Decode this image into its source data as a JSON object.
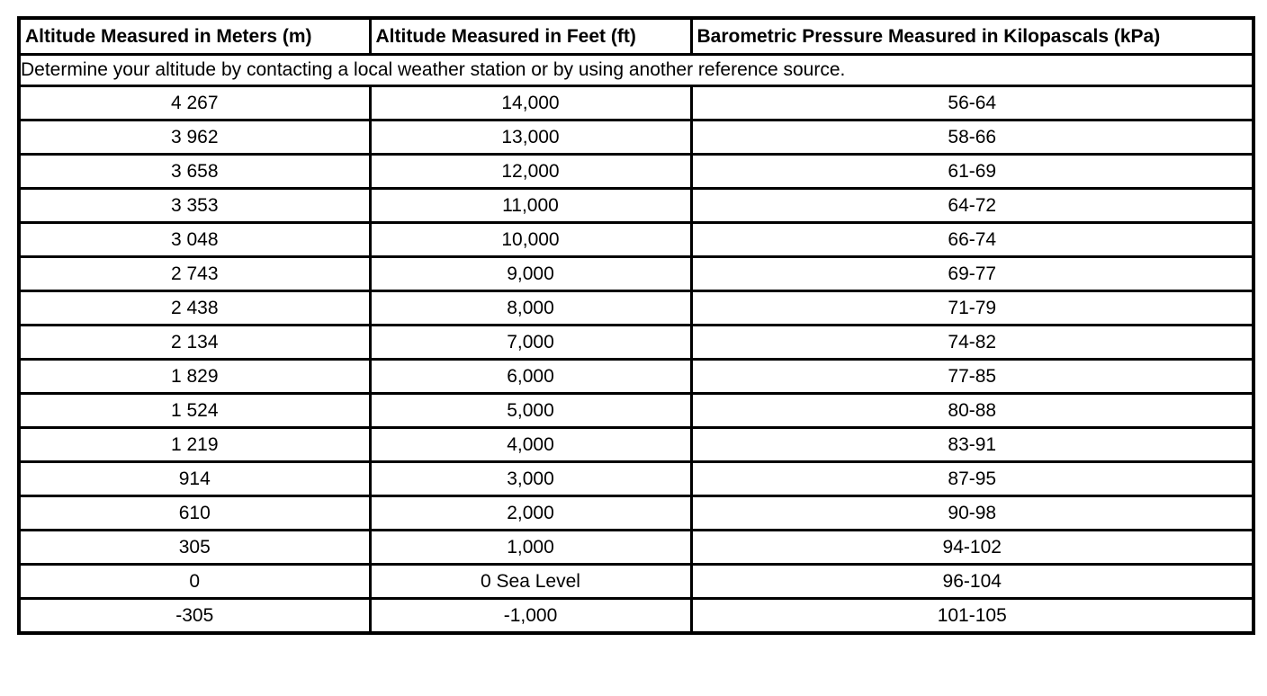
{
  "table": {
    "headers": {
      "meters": "Altitude Measured in Meters (m)",
      "feet": "Altitude Measured in Feet (ft)",
      "pressure": "Barometric Pressure Measured in Kilopascals (kPa)"
    },
    "note": "Determine your altitude by contacting a local weather station or by using another reference source.",
    "rows": [
      {
        "meters": "4 267",
        "feet": "14,000",
        "pressure": "56-64"
      },
      {
        "meters": "3 962",
        "feet": "13,000",
        "pressure": "58-66"
      },
      {
        "meters": "3 658",
        "feet": "12,000",
        "pressure": "61-69"
      },
      {
        "meters": "3 353",
        "feet": "11,000",
        "pressure": "64-72"
      },
      {
        "meters": "3 048",
        "feet": "10,000",
        "pressure": "66-74"
      },
      {
        "meters": "2 743",
        "feet": "9,000",
        "pressure": "69-77"
      },
      {
        "meters": "2 438",
        "feet": "8,000",
        "pressure": "71-79"
      },
      {
        "meters": "2 134",
        "feet": "7,000",
        "pressure": "74-82"
      },
      {
        "meters": "1 829",
        "feet": "6,000",
        "pressure": "77-85"
      },
      {
        "meters": "1 524",
        "feet": "5,000",
        "pressure": "80-88"
      },
      {
        "meters": "1 219",
        "feet": "4,000",
        "pressure": "83-91"
      },
      {
        "meters": "914",
        "feet": "3,000",
        "pressure": "87-95"
      },
      {
        "meters": "610",
        "feet": "2,000",
        "pressure": "90-98"
      },
      {
        "meters": "305",
        "feet": "1,000",
        "pressure": "94-102"
      },
      {
        "meters": "0",
        "feet": "0 Sea Level",
        "pressure": "96-104"
      },
      {
        "meters": "-305",
        "feet": "-1,000",
        "pressure": "101-105"
      }
    ]
  },
  "colors": {
    "border": "#000000",
    "text": "#000000",
    "background": "#ffffff"
  }
}
